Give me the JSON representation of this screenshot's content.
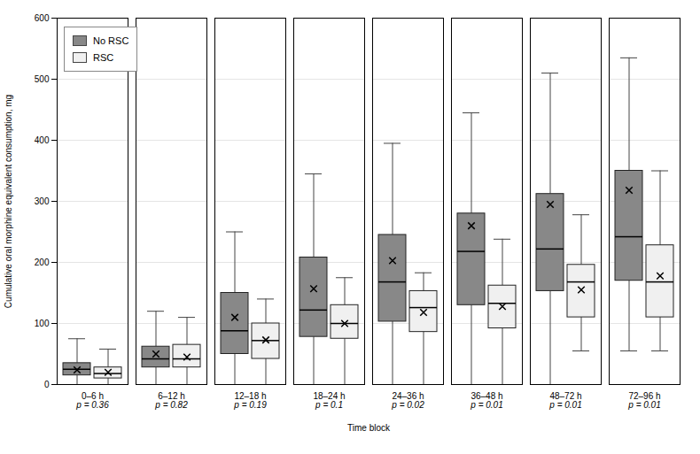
{
  "chart_data": {
    "type": "box",
    "xlabel": "Time block",
    "ylabel": "Cumulative oral morphine equivalent consumption, mg",
    "categories": [
      "0–6 h",
      "6–12 h",
      "12–18 h",
      "18–24 h",
      "24–36 h",
      "36–48 h",
      "48–72 h",
      "72–96 h"
    ],
    "annotations": [
      "p = 0.36",
      "p = 0.82",
      "p = 0.19",
      "p = 0.1",
      "p = 0.02",
      "p = 0.01",
      "p = 0.01",
      "p = 0.01"
    ],
    "series": [
      {
        "name": "No RSC",
        "color": "#888888",
        "whislo": [
          0,
          0,
          0,
          0,
          0,
          0,
          0,
          55
        ],
        "q1": [
          15,
          28,
          50,
          78,
          103,
          130,
          153,
          170
        ],
        "med": [
          25,
          42,
          88,
          122,
          168,
          218,
          222,
          242
        ],
        "q3": [
          35,
          62,
          150,
          208,
          245,
          280,
          312,
          350
        ],
        "whishi": [
          75,
          120,
          250,
          345,
          395,
          445,
          510,
          535
        ],
        "mean": [
          24,
          50,
          110,
          157,
          203,
          260,
          295,
          318
        ]
      },
      {
        "name": "RSC",
        "color": "#f0f0f0",
        "whislo": [
          0,
          0,
          0,
          0,
          0,
          0,
          55,
          55
        ],
        "q1": [
          10,
          28,
          42,
          75,
          86,
          92,
          110,
          110
        ],
        "med": [
          18,
          42,
          72,
          100,
          126,
          133,
          168,
          168
        ],
        "q3": [
          28,
          65,
          100,
          130,
          153,
          162,
          196,
          228
        ],
        "whishi": [
          58,
          110,
          140,
          175,
          183,
          238,
          278,
          350
        ],
        "mean": [
          20,
          45,
          73,
          100,
          118,
          128,
          155,
          178
        ]
      }
    ],
    "ylim": [
      0,
      600
    ],
    "yticks": [
      0,
      100,
      200,
      300,
      400,
      500,
      600
    ],
    "grid": true,
    "legend": "upper left"
  }
}
